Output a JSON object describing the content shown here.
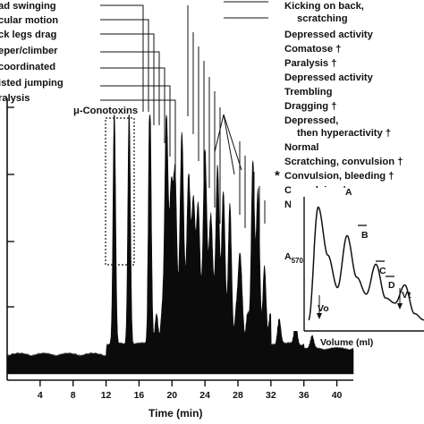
{
  "chart_data": [
    {
      "type": "area",
      "xlabel": "Time (min)",
      "ylabel": "",
      "xlim": [
        0,
        42
      ],
      "x_ticks": [
        4,
        8,
        12,
        16,
        20,
        24,
        28,
        32,
        36,
        40
      ],
      "annotation": "μ-Conotoxins",
      "peaks": [
        {
          "x": 13.0,
          "y": 0.92
        },
        {
          "x": 14.8,
          "y": 0.92
        },
        {
          "x": 17.3,
          "y": 0.91
        },
        {
          "x": 19.3,
          "y": 0.82
        },
        {
          "x": 19.9,
          "y": 0.56
        },
        {
          "x": 20.4,
          "y": 0.58
        },
        {
          "x": 21.2,
          "y": 0.78
        },
        {
          "x": 22.0,
          "y": 0.6
        },
        {
          "x": 22.6,
          "y": 0.52
        },
        {
          "x": 23.2,
          "y": 0.48
        },
        {
          "x": 24.0,
          "y": 0.72
        },
        {
          "x": 24.7,
          "y": 0.46
        },
        {
          "x": 25.5,
          "y": 0.62
        },
        {
          "x": 26.2,
          "y": 0.52
        },
        {
          "x": 27.0,
          "y": 0.44
        },
        {
          "x": 28.2,
          "y": 0.3
        },
        {
          "x": 29.8,
          "y": 0.6
        },
        {
          "x": 30.4,
          "y": 0.5
        },
        {
          "x": 31.2,
          "y": 0.18
        },
        {
          "x": 33.0,
          "y": 0.1
        },
        {
          "x": 35.0,
          "y": 0.08
        },
        {
          "x": 37.0,
          "y": 0.06
        }
      ],
      "activity_labels": [
        "ad swinging",
        "cular motion",
        "ck legs drag",
        "eper/climber",
        "coordinated",
        "isted jumping",
        "ralysis",
        "Kicking on back,",
        "scratching",
        "Depressed activity",
        "Comatose †",
        "Paralysis †",
        "Depressed activity",
        "Trembling",
        "Dragging †",
        "Depressed,",
        "then hyperactivity †",
        "Normal",
        "Scratching, convulsion †",
        "Convulsion, bleeding †",
        "Convulsion †",
        "Normal"
      ],
      "star_marker": "*"
    },
    {
      "type": "line",
      "xlabel": "Volume (ml)",
      "ylabel": "A",
      "ylabel_subscript": "570",
      "peak_labels": [
        "A",
        "B",
        "C",
        "D"
      ],
      "markers": [
        "Vo",
        "Vt"
      ],
      "series": [
        {
          "values": [
            0.05,
            0.92,
            0.55,
            0.3,
            0.7,
            0.38,
            0.25,
            0.48,
            0.22,
            0.18,
            0.32,
            0.1,
            0.05
          ]
        }
      ]
    }
  ]
}
